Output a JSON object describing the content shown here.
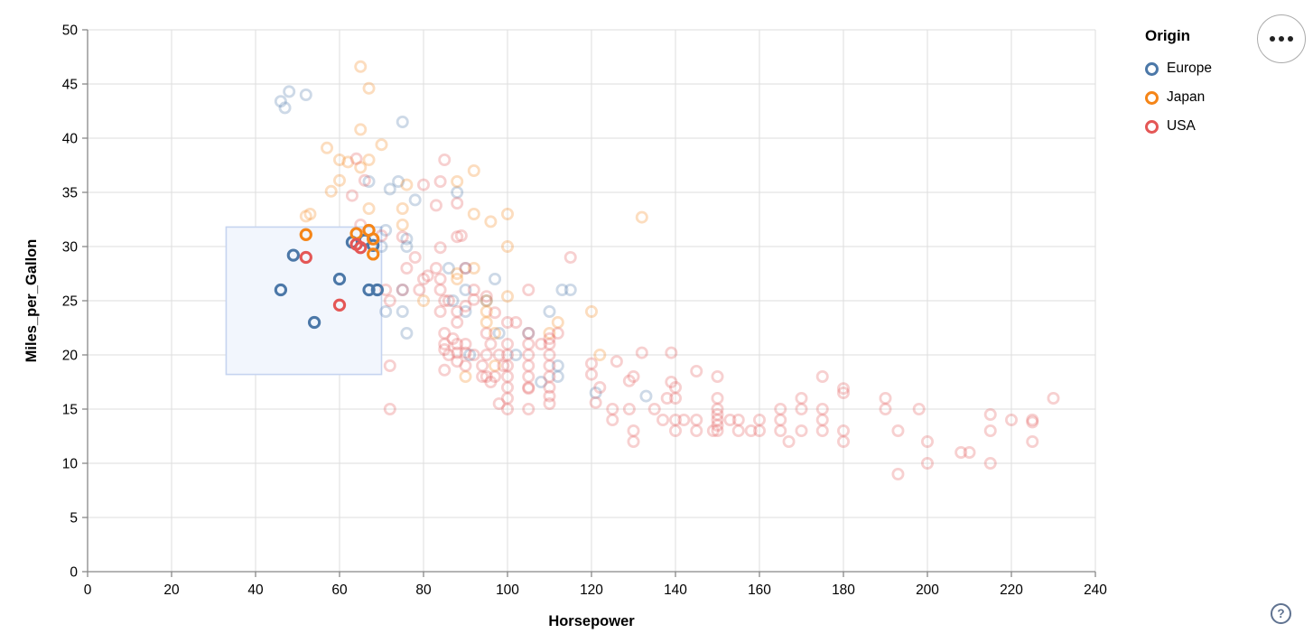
{
  "toolbar": {
    "more_options_icon": "ellipsis-menu",
    "help_icon": "?"
  },
  "legend": {
    "title": "Origin",
    "items": [
      {
        "label": "Europe",
        "color": "#4c78a8"
      },
      {
        "label": "Japan",
        "color": "#f58518"
      },
      {
        "label": "USA",
        "color": "#e45756"
      }
    ]
  },
  "chart_data": {
    "type": "scatter",
    "title": "",
    "xlabel": "Horsepower",
    "ylabel": "Miles_per_Gallon",
    "xlim": [
      0,
      240
    ],
    "ylim": [
      0,
      50
    ],
    "xticks": [
      0,
      20,
      40,
      60,
      80,
      100,
      120,
      140,
      160,
      180,
      200,
      220,
      240
    ],
    "yticks": [
      0,
      5,
      10,
      15,
      20,
      25,
      30,
      35,
      40,
      45,
      50
    ],
    "grid": true,
    "grid_color": "#dddddd",
    "axis_color": "#888888",
    "label_color": "#000000",
    "legend_position": "top-right",
    "point_style": {
      "shape": "ring",
      "radius": 5.6,
      "stroke_width": 2.8,
      "selected_stroke_width": 3.1,
      "unselected_opacity": 0.28
    },
    "brush_selection": {
      "x_range": [
        33,
        70
      ],
      "y_range": [
        18.2,
        31.8
      ],
      "fill": "#f2f6fd",
      "stroke": "#c6d4f0"
    },
    "series": [
      {
        "name": "Europe",
        "color": "#4c78a8",
        "selected_points": [
          [
            46,
            26
          ],
          [
            49,
            29.2
          ],
          [
            54,
            23
          ],
          [
            60,
            27
          ],
          [
            63,
            30.4
          ],
          [
            66,
            30.6
          ],
          [
            67,
            26
          ],
          [
            69,
            26
          ],
          [
            68,
            30.1
          ]
        ],
        "points": [
          [
            46,
            43.4
          ],
          [
            48,
            44.3
          ],
          [
            52,
            44
          ],
          [
            47,
            42.8
          ],
          [
            75,
            41.5
          ],
          [
            74,
            36
          ],
          [
            72,
            35.3
          ],
          [
            78,
            34.3
          ],
          [
            88,
            35
          ],
          [
            71,
            31.5
          ],
          [
            70,
            30
          ],
          [
            76,
            30.7
          ],
          [
            76,
            30
          ],
          [
            87,
            25
          ],
          [
            90,
            24
          ],
          [
            95,
            25
          ],
          [
            113,
            26
          ],
          [
            90,
            28
          ],
          [
            97,
            27
          ],
          [
            112,
            18
          ],
          [
            76,
            22
          ],
          [
            91,
            20
          ],
          [
            110,
            24
          ],
          [
            90,
            26
          ],
          [
            75,
            24
          ],
          [
            112,
            19
          ],
          [
            75,
            26
          ],
          [
            102,
            20
          ],
          [
            98,
            22
          ],
          [
            86,
            28
          ],
          [
            115,
            26
          ],
          [
            121,
            16.5
          ],
          [
            133,
            16.2
          ],
          [
            67,
            36
          ],
          [
            71,
            24
          ],
          [
            105,
            22
          ],
          [
            108,
            17.5
          ]
        ]
      },
      {
        "name": "Japan",
        "color": "#f58518",
        "selected_points": [
          [
            52,
            31.1
          ],
          [
            64,
            31.2
          ],
          [
            67,
            31.5
          ],
          [
            68,
            30.7
          ],
          [
            68,
            29.3
          ]
        ],
        "points": [
          [
            65,
            46.6
          ],
          [
            67,
            44.6
          ],
          [
            65,
            40.8
          ],
          [
            70,
            39.4
          ],
          [
            57,
            39.1
          ],
          [
            60,
            38
          ],
          [
            62,
            37.8
          ],
          [
            65,
            37.3
          ],
          [
            67,
            38
          ],
          [
            60,
            36.1
          ],
          [
            58,
            35.1
          ],
          [
            53,
            33
          ],
          [
            52,
            32.8
          ],
          [
            67,
            33.5
          ],
          [
            75,
            33.5
          ],
          [
            76,
            35.7
          ],
          [
            92,
            37
          ],
          [
            92,
            33
          ],
          [
            96,
            32.3
          ],
          [
            100,
            33
          ],
          [
            88,
            36
          ],
          [
            100,
            30
          ],
          [
            75,
            32
          ],
          [
            88,
            27
          ],
          [
            88,
            27.5
          ],
          [
            95,
            24
          ],
          [
            95,
            25
          ],
          [
            92,
            28
          ],
          [
            97,
            19
          ],
          [
            90,
            18
          ],
          [
            80,
            25
          ],
          [
            97,
            22
          ],
          [
            95,
            23
          ],
          [
            110,
            22
          ],
          [
            122,
            20
          ],
          [
            120,
            24
          ],
          [
            132,
            32.7
          ],
          [
            100,
            25.4
          ],
          [
            112,
            23
          ]
        ]
      },
      {
        "name": "USA",
        "color": "#e45756",
        "selected_points": [
          [
            52,
            29
          ],
          [
            60,
            24.6
          ],
          [
            64,
            30.2
          ],
          [
            65,
            29.9
          ]
        ],
        "points": [
          [
            66,
            36.1
          ],
          [
            63,
            34.7
          ],
          [
            64,
            38.1
          ],
          [
            85,
            38
          ],
          [
            84,
            36
          ],
          [
            80,
            35.7
          ],
          [
            83,
            33.8
          ],
          [
            88,
            34
          ],
          [
            88,
            30.9
          ],
          [
            89,
            31
          ],
          [
            75,
            30.9
          ],
          [
            70,
            31
          ],
          [
            65,
            32
          ],
          [
            71,
            26
          ],
          [
            75,
            26
          ],
          [
            72,
            25
          ],
          [
            80,
            27
          ],
          [
            83,
            28
          ],
          [
            84,
            27
          ],
          [
            79,
            26
          ],
          [
            76,
            28
          ],
          [
            78,
            29
          ],
          [
            84,
            29.9
          ],
          [
            86,
            25
          ],
          [
            81,
            27.3
          ],
          [
            92,
            26
          ],
          [
            90,
            28
          ],
          [
            85,
            25
          ],
          [
            84,
            26
          ],
          [
            88,
            24
          ],
          [
            88,
            23
          ],
          [
            90,
            24.5
          ],
          [
            92,
            25.1
          ],
          [
            95,
            25.4
          ],
          [
            84,
            24
          ],
          [
            85,
            22
          ],
          [
            87,
            21.5
          ],
          [
            85,
            21
          ],
          [
            85,
            20.5
          ],
          [
            85,
            18.6
          ],
          [
            88,
            21
          ],
          [
            88,
            20.2
          ],
          [
            88,
            19.4
          ],
          [
            86,
            20
          ],
          [
            90,
            20.2
          ],
          [
            92,
            20
          ],
          [
            90,
            21
          ],
          [
            90,
            19
          ],
          [
            94,
            19
          ],
          [
            94,
            18
          ],
          [
            95,
            22
          ],
          [
            95,
            20
          ],
          [
            95,
            18
          ],
          [
            96,
            21
          ],
          [
            96,
            17.5
          ],
          [
            97,
            18
          ],
          [
            97,
            23.9
          ],
          [
            98,
            20
          ],
          [
            98,
            15.5
          ],
          [
            99,
            19
          ],
          [
            100,
            18
          ],
          [
            100,
            19
          ],
          [
            100,
            17
          ],
          [
            100,
            16
          ],
          [
            100,
            20
          ],
          [
            100,
            21
          ],
          [
            100,
            23
          ],
          [
            100,
            15
          ],
          [
            102,
            23
          ],
          [
            105,
            26
          ],
          [
            105,
            22
          ],
          [
            105,
            20
          ],
          [
            105,
            21
          ],
          [
            105,
            18
          ],
          [
            105,
            19
          ],
          [
            105,
            17
          ],
          [
            105,
            15
          ],
          [
            105,
            16.9
          ],
          [
            108,
            21
          ],
          [
            110,
            21
          ],
          [
            110,
            18
          ],
          [
            110,
            19
          ],
          [
            110,
            17
          ],
          [
            110,
            20
          ],
          [
            110,
            16.2
          ],
          [
            110,
            21.5
          ],
          [
            110,
            15.5
          ],
          [
            112,
            22
          ],
          [
            115,
            29
          ],
          [
            72,
            15
          ],
          [
            72,
            19
          ],
          [
            120,
            19.2
          ],
          [
            120,
            18.2
          ],
          [
            121,
            15.6
          ],
          [
            122,
            17
          ],
          [
            126,
            19.4
          ],
          [
            129,
            17.6
          ],
          [
            125,
            15
          ],
          [
            125,
            14
          ],
          [
            129,
            15
          ],
          [
            130,
            18
          ],
          [
            130,
            13
          ],
          [
            130,
            12
          ],
          [
            132,
            20.2
          ],
          [
            135,
            15
          ],
          [
            137,
            14
          ],
          [
            138,
            16
          ],
          [
            139,
            17.5
          ],
          [
            139,
            20.2
          ],
          [
            140,
            17
          ],
          [
            140,
            16
          ],
          [
            140,
            13
          ],
          [
            140,
            14
          ],
          [
            142,
            14
          ],
          [
            145,
            13
          ],
          [
            145,
            14
          ],
          [
            145,
            18.5
          ],
          [
            149,
            13
          ],
          [
            150,
            14
          ],
          [
            150,
            15
          ],
          [
            150,
            16
          ],
          [
            150,
            13
          ],
          [
            150,
            18
          ],
          [
            150,
            14.5
          ],
          [
            150,
            13.5
          ],
          [
            153,
            14
          ],
          [
            155,
            14
          ],
          [
            155,
            13
          ],
          [
            158,
            13
          ],
          [
            160,
            14
          ],
          [
            160,
            13
          ],
          [
            165,
            15
          ],
          [
            165,
            13
          ],
          [
            165,
            14
          ],
          [
            167,
            12
          ],
          [
            170,
            13
          ],
          [
            170,
            15
          ],
          [
            170,
            16
          ],
          [
            175,
            14
          ],
          [
            175,
            13
          ],
          [
            175,
            18
          ],
          [
            175,
            15
          ],
          [
            180,
            12
          ],
          [
            180,
            13
          ],
          [
            180,
            16.5
          ],
          [
            180,
            16.9
          ],
          [
            190,
            16
          ],
          [
            190,
            15
          ],
          [
            193,
            13
          ],
          [
            193,
            9
          ],
          [
            198,
            15
          ],
          [
            200,
            12
          ],
          [
            200,
            10
          ],
          [
            208,
            11
          ],
          [
            210,
            11
          ],
          [
            215,
            14.5
          ],
          [
            215,
            13
          ],
          [
            215,
            10
          ],
          [
            220,
            14
          ],
          [
            225,
            14
          ],
          [
            225,
            13.8
          ],
          [
            225,
            12
          ],
          [
            230,
            16
          ]
        ]
      }
    ]
  }
}
